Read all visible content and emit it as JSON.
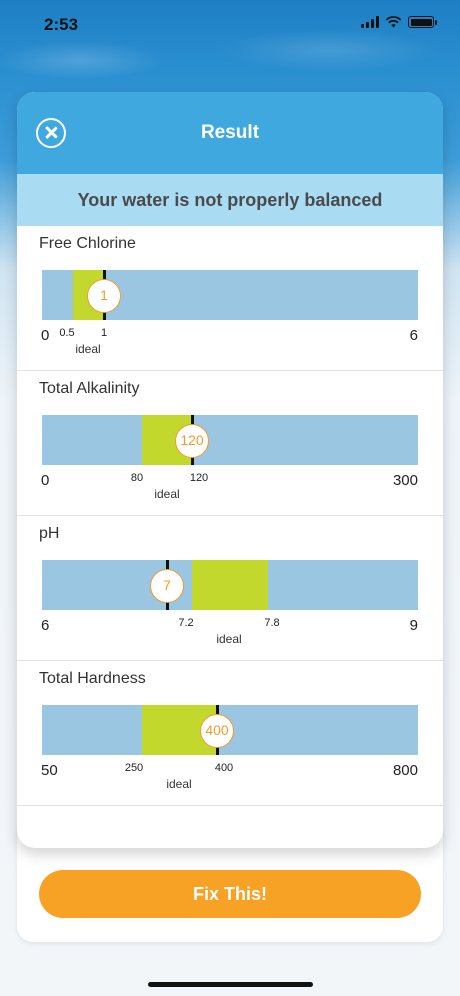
{
  "status": {
    "time": "2:53"
  },
  "modal": {
    "title": "Result",
    "banner": "Your water is not properly balanced"
  },
  "readings": [
    {
      "name": "Free Chlorine",
      "min": "0",
      "max": "6",
      "ideal_low": "0.5",
      "ideal_high": "1",
      "value": "1",
      "ideal_label": "ideal"
    },
    {
      "name": "Total Alkalinity",
      "min": "0",
      "max": "300",
      "ideal_low": "80",
      "ideal_high": "120",
      "value": "120",
      "ideal_label": "ideal"
    },
    {
      "name": "pH",
      "min": "6",
      "max": "9",
      "ideal_low": "7.2",
      "ideal_high": "7.8",
      "value": "7",
      "ideal_label": "ideal"
    },
    {
      "name": "Total Hardness",
      "min": "50",
      "max": "800",
      "ideal_low": "250",
      "ideal_high": "400",
      "value": "400",
      "ideal_label": "ideal"
    }
  ],
  "actions": {
    "fix_label": "Fix This!"
  },
  "colors": {
    "header": "#3fa9df",
    "banner": "#a9dbf3",
    "range_bar": "#9ac6e2",
    "ideal_zone": "#c2d82d",
    "marker": "#f39b29",
    "fix_button": "#f7a224"
  },
  "icons": {
    "close": "close-circle-icon",
    "wifi": "wifi-icon",
    "signal": "signal-icon",
    "battery": "battery-icon"
  }
}
